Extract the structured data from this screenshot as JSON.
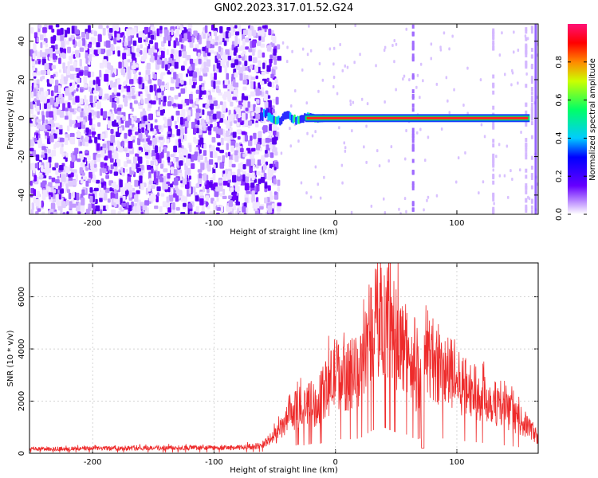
{
  "chart_data": [
    {
      "type": "heatmap",
      "title": "GN02.2023.317.01.52.G24",
      "xlabel": "Height of straight line (km)",
      "ylabel": "Frequency (Hz)",
      "xlim": [
        -252,
        167
      ],
      "ylim": [
        -50,
        49
      ],
      "xticks": [
        -200,
        -100,
        0,
        100
      ],
      "yticks": [
        -40,
        -20,
        0,
        20,
        40
      ],
      "colorbar": {
        "label": "Normalized spectral amplitude",
        "range": [
          0,
          1
        ],
        "ticks": [
          "0.0",
          "0.2",
          "0.4",
          "0.6",
          "0.8"
        ]
      },
      "features": {
        "noise_region_x": [
          -252,
          -48
        ],
        "onset_x": -62,
        "line_frequency": 0,
        "line_x": [
          -30,
          160
        ],
        "vertical_streaks_x": [
          64,
          130,
          157,
          162
        ]
      }
    },
    {
      "type": "line",
      "xlabel": "Height of straight line (km)",
      "ylabel": "SNR (10 * v/v)",
      "xlim": [
        -252,
        167
      ],
      "ylim": [
        0,
        7300
      ],
      "xticks": [
        -200,
        -100,
        0,
        100
      ],
      "yticks": [
        0,
        2000,
        4000,
        6000
      ],
      "color": "#ee2b2b",
      "envelope": {
        "x": [
          -252,
          -150,
          -80,
          -62,
          -52,
          -45,
          -40,
          -30,
          -25,
          -20,
          -15,
          -10,
          -5,
          0,
          5,
          10,
          15,
          20,
          25,
          30,
          35,
          40,
          45,
          50,
          55,
          60,
          62,
          66,
          70,
          72,
          75,
          80,
          85,
          90,
          95,
          100,
          110,
          120,
          130,
          140,
          150,
          160,
          167
        ],
        "y": [
          200,
          250,
          260,
          350,
          700,
          1100,
          1500,
          2200,
          2000,
          2400,
          2100,
          2800,
          3200,
          3800,
          3600,
          3500,
          3800,
          3700,
          4800,
          5800,
          6300,
          6600,
          6000,
          5300,
          5000,
          4700,
          4300,
          3500,
          3800,
          4200,
          4900,
          4400,
          4000,
          3700,
          3700,
          3300,
          3000,
          2700,
          2400,
          2000,
          1600,
          1200,
          700
        ]
      }
    }
  ]
}
